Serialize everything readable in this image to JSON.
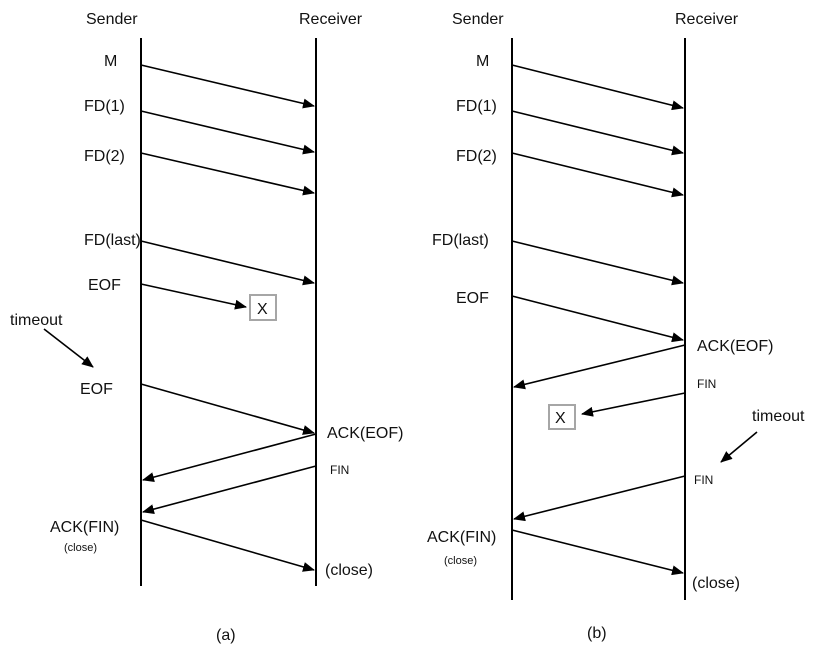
{
  "diagram_a": {
    "sender": "Sender",
    "receiver": "Receiver",
    "labels": {
      "m": "M",
      "fd1": "FD(1)",
      "fd2": "FD(2)",
      "fdlast": "FD(last)",
      "eof1": "EOF",
      "lost": "X",
      "timeout": "timeout",
      "eof2": "EOF",
      "ackeof": "ACK(EOF)",
      "fin": "FIN",
      "ackfin": "ACK(FIN)",
      "close_sender": "(close)",
      "close_receiver": "(close)"
    },
    "caption": "(a)"
  },
  "diagram_b": {
    "sender": "Sender",
    "receiver": "Receiver",
    "labels": {
      "m": "M",
      "fd1": "FD(1)",
      "fd2": "FD(2)",
      "fdlast": "FD(last)",
      "eof": "EOF",
      "ackeof": "ACK(EOF)",
      "fin1": "FIN",
      "lost": "X",
      "timeout": "timeout",
      "fin2": "FIN",
      "ackfin": "ACK(FIN)",
      "close_sender": "(close)",
      "close_receiver": "(close)"
    },
    "caption": "(b)"
  }
}
